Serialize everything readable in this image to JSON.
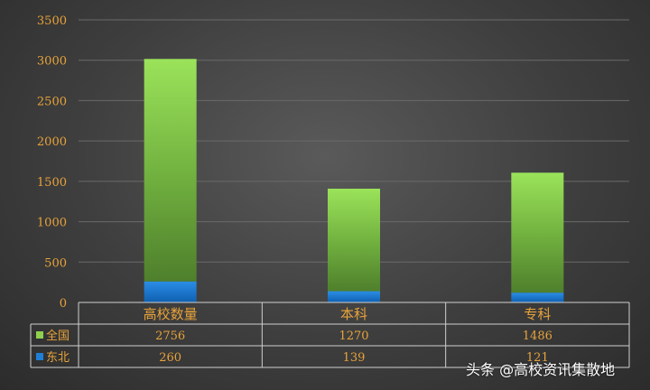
{
  "chart_data": {
    "type": "bar",
    "stacked": true,
    "categories": [
      "高校数量",
      "本科",
      "专科"
    ],
    "series": [
      {
        "name": "全国",
        "values": [
          2756,
          1270,
          1486
        ],
        "color": "#8fd14f"
      },
      {
        "name": "东北",
        "values": [
          260,
          139,
          121
        ],
        "color": "#1f7fd6"
      }
    ],
    "ylim": [
      0,
      3500
    ],
    "yticks": [
      "0",
      "500",
      "1000",
      "1500",
      "2000",
      "2500",
      "3000",
      "3500"
    ],
    "grid": true,
    "legend": "data-table"
  },
  "watermark": "头条 @高校资讯集散地"
}
